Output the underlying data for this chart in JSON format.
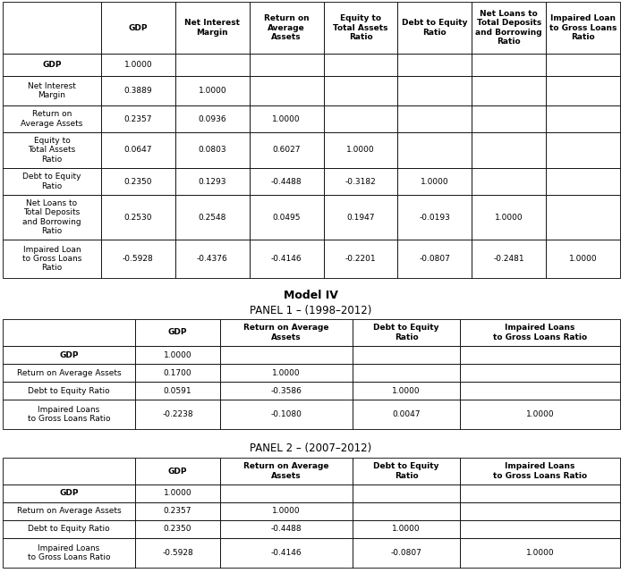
{
  "top_table": {
    "col_headers": [
      "GDP",
      "Net Interest\nMargin",
      "Return on\nAverage\nAssets",
      "Equity to\nTotal Assets\nRatio",
      "Debt to Equity\nRatio",
      "Net Loans to\nTotal Deposits\nand Borrowing\nRatio",
      "Impaired Loan\nto Gross Loans\nRatio"
    ],
    "row_headers": [
      "GDP",
      "Net Interest\nMargin",
      "Return on\nAverage Assets",
      "Equity to\nTotal Assets\nRatio",
      "Debt to Equity\nRatio",
      "Net Loans to\nTotal Deposits\nand Borrowing\nRatio",
      "Impaired Loan\nto Gross Loans\nRatio"
    ],
    "data": [
      [
        "1.0000",
        "",
        "",
        "",
        "",
        "",
        ""
      ],
      [
        "0.3889",
        "1.0000",
        "",
        "",
        "",
        "",
        ""
      ],
      [
        "0.2357",
        "0.0936",
        "1.0000",
        "",
        "",
        "",
        ""
      ],
      [
        "0.0647",
        "0.0803",
        "0.6027",
        "1.0000",
        "",
        "",
        ""
      ],
      [
        "0.2350",
        "0.1293",
        "-0.4488",
        "-0.3182",
        "1.0000",
        "",
        ""
      ],
      [
        "0.2530",
        "0.2548",
        "0.0495",
        "0.1947",
        "-0.0193",
        "1.0000",
        ""
      ],
      [
        "-0.5928",
        "-0.4376",
        "-0.4146",
        "-0.2201",
        "-0.0807",
        "-0.2481",
        "1.0000"
      ]
    ]
  },
  "panel1_table": {
    "col_headers": [
      "GDP",
      "Return on Average\nAssets",
      "Debt to Equity\nRatio",
      "Impaired Loans\nto Gross Loans Ratio"
    ],
    "row_headers": [
      "GDP",
      "Return on Average Assets",
      "Debt to Equity Ratio",
      "Impaired Loans\nto Gross Loans Ratio"
    ],
    "data": [
      [
        "1.0000",
        "",
        "",
        ""
      ],
      [
        "0.1700",
        "1.0000",
        "",
        ""
      ],
      [
        "0.0591",
        "-0.3586",
        "1.0000",
        ""
      ],
      [
        "-0.2238",
        "-0.1080",
        "0.0047",
        "1.0000"
      ]
    ]
  },
  "panel2_table": {
    "col_headers": [
      "GDP",
      "Return on Average\nAssets",
      "Debt to Equity\nRatio",
      "Impaired Loans\nto Gross Loans Ratio"
    ],
    "row_headers": [
      "GDP",
      "Return on Average Assets",
      "Debt to Equity Ratio",
      "Impaired Loans\nto Gross Loans Ratio"
    ],
    "data": [
      [
        "1.0000",
        "",
        "",
        ""
      ],
      [
        "0.2357",
        "1.0000",
        "",
        ""
      ],
      [
        "0.2350",
        "-0.4488",
        "1.0000",
        ""
      ],
      [
        "-0.5928",
        "-0.4146",
        "-0.0807",
        "1.0000"
      ]
    ]
  },
  "title_model": "Model IV",
  "title_panel1": "PANEL 1 – (1998–2012)",
  "title_panel2": "PANEL 2 – (2007–2012)",
  "font_size": 6.5,
  "font_size_title": 8.5,
  "font_size_model": 9.0
}
